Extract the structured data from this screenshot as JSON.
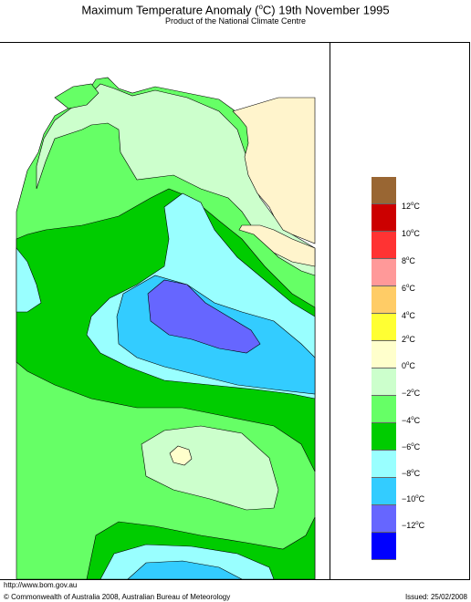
{
  "header": {
    "title": "Maximum Temperature Anomaly (",
    "title_deg": "o",
    "title_tail": "C)  19th November 1995",
    "subtitle": "Product of the National Climate Centre"
  },
  "legend": {
    "items": [
      {
        "label": "12",
        "color": "#cc0000"
      },
      {
        "label": "10",
        "color": "#ff3333"
      },
      {
        "label": "8",
        "color": "#ff9999"
      },
      {
        "label": "6",
        "color": "#ffcc66"
      },
      {
        "label": "4",
        "color": "#ffff33"
      },
      {
        "label": "2",
        "color": "#ffffcc"
      },
      {
        "label": "0",
        "color": "#ccffcc"
      },
      {
        "label": "−2",
        "color": "#66ff66"
      },
      {
        "label": "−4",
        "color": "#00cc00"
      },
      {
        "label": "−6",
        "color": "#99ffff"
      },
      {
        "label": "−8",
        "color": "#33ccff"
      },
      {
        "label": "−10",
        "color": "#6666ff"
      },
      {
        "label": "−12",
        "color": "#0000ff"
      }
    ],
    "top_color": "#996633",
    "unit_deg": "o",
    "unit": "C"
  },
  "footer": {
    "url": "http://www.bom.gov.au",
    "copyright": "© Commonwealth of Australia 2008, Australian Bureau of Meteorology",
    "issued": "Issued: 25/02/2008"
  }
}
